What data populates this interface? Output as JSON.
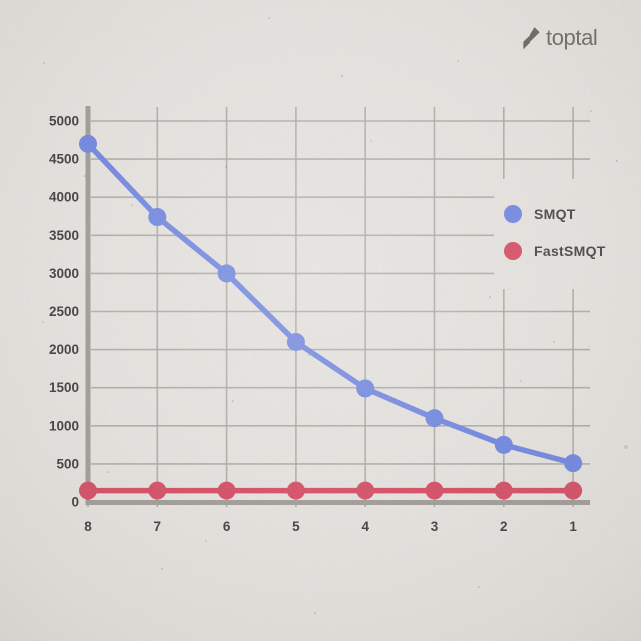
{
  "logo": {
    "brand": "toptal"
  },
  "chart_data": {
    "type": "line",
    "title": "",
    "xlabel": "",
    "ylabel": "",
    "x": [
      8,
      7,
      6,
      5,
      4,
      3,
      2,
      1
    ],
    "x_tick_labels": [
      "8",
      "7",
      "6",
      "5",
      "4",
      "3",
      "2",
      "1"
    ],
    "x_axis_direction": "descending",
    "y_ticks": [
      0,
      500,
      1000,
      1500,
      2000,
      2500,
      3000,
      3500,
      4000,
      4500,
      5000
    ],
    "ylim": [
      0,
      5000
    ],
    "grid": true,
    "legend_position": "center-right",
    "series": [
      {
        "name": "SMQT",
        "color": "#6f85e2",
        "values": [
          4700,
          3740,
          3000,
          2100,
          1490,
          1100,
          750,
          510
        ]
      },
      {
        "name": "FastSMQT",
        "color": "#d64a62",
        "values": [
          150,
          150,
          150,
          150,
          150,
          150,
          150,
          150
        ]
      }
    ]
  },
  "colors": {
    "background": "#e7e4e0",
    "grid": "#a7a49f",
    "axis": "#9f9c97",
    "tick_label": "#3b3b3b",
    "legend_label": "#454545",
    "logo": "#67655f"
  }
}
